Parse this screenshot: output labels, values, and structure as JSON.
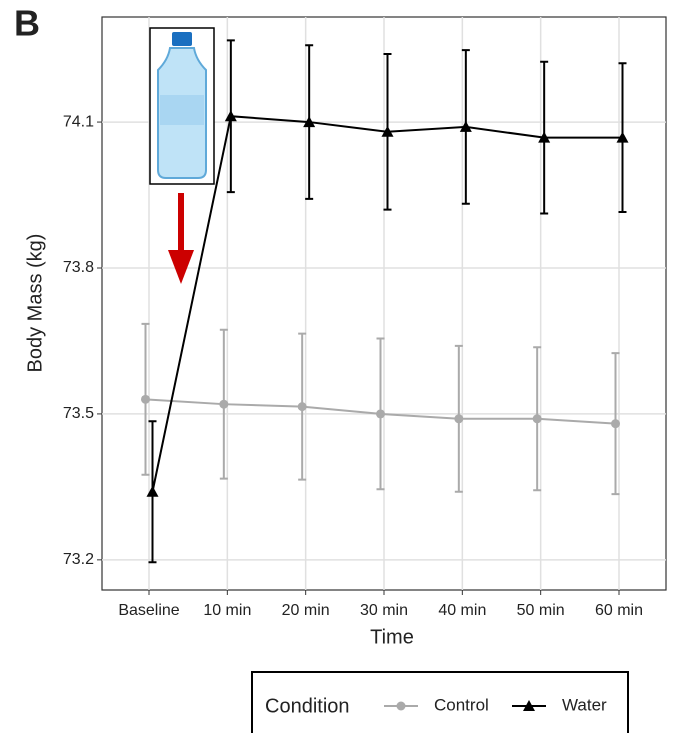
{
  "chart_data": {
    "type": "line",
    "panel_label": "B",
    "x_label": "Time",
    "y_label": "Body Mass (kg)",
    "categories": [
      "Baseline",
      "10 min",
      "20 min",
      "30 min",
      "40 min",
      "50 min",
      "60 min"
    ],
    "series": [
      {
        "name": "Control",
        "color": "#aaaaaa",
        "marker": "circle",
        "values": [
          73.53,
          73.52,
          73.515,
          73.5,
          73.49,
          73.49,
          73.48
        ],
        "errors": [
          0.155,
          0.153,
          0.15,
          0.155,
          0.15,
          0.147,
          0.145
        ]
      },
      {
        "name": "Water",
        "color": "#000000",
        "marker": "triangle",
        "values": [
          73.34,
          74.112,
          74.1,
          74.08,
          74.09,
          74.068,
          74.068
        ],
        "errors": [
          0.145,
          0.156,
          0.158,
          0.16,
          0.158,
          0.156,
          0.153
        ]
      }
    ],
    "ylim": [
      73.138,
      74.316
    ],
    "yticks": [
      73.2,
      73.5,
      73.8,
      74.1
    ],
    "grid": true,
    "legend_title": "Condition",
    "legend_position": "bottom"
  }
}
